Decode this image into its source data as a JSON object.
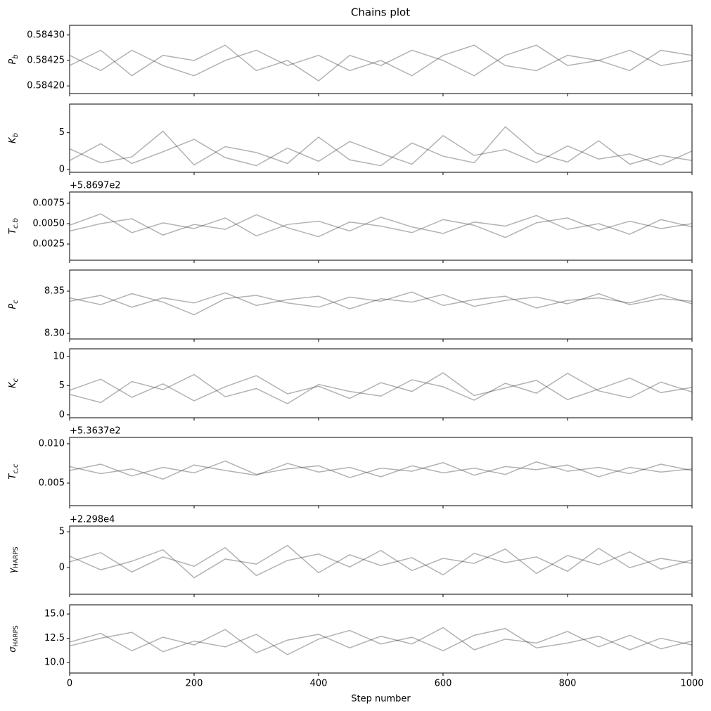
{
  "title": "Chains plot",
  "chart_data": [
    {
      "type": "line",
      "ylabel": {
        "text": "P",
        "sub": "b"
      },
      "color": "#000000",
      "alpha": 0.3,
      "x": [
        0,
        50,
        100,
        150,
        200,
        250,
        300,
        350,
        400,
        450,
        500,
        550,
        600,
        650,
        700,
        750,
        800,
        850,
        900,
        950,
        1000
      ],
      "xlim": [
        0,
        1000
      ],
      "ylim": [
        0.584185,
        0.584319
      ],
      "yticks": [
        {
          "value": 0.5842,
          "label": "0.58420"
        },
        0.58425,
        {
          "value": 0.5843,
          "label": "0.58430"
        }
      ],
      "series": [
        {
          "values": [
            0.58424,
            0.58427,
            0.58422,
            0.58426,
            0.58425,
            0.58428,
            0.58423,
            0.58425,
            0.58421,
            0.58426,
            0.58424,
            0.58427,
            0.58425,
            0.58422,
            0.58426,
            0.58428,
            0.58424,
            0.58425,
            0.58423,
            0.58427,
            0.58426
          ]
        },
        {
          "values": [
            0.58426,
            0.58423,
            0.58427,
            0.58424,
            0.58422,
            0.58425,
            0.58427,
            0.58424,
            0.58426,
            0.58423,
            0.58425,
            0.58422,
            0.58426,
            0.58428,
            0.58424,
            0.58423,
            0.58426,
            0.58425,
            0.58427,
            0.58424,
            0.58425
          ]
        }
      ]
    },
    {
      "type": "line",
      "ylabel": {
        "text": "K",
        "sub": "b"
      },
      "color": "#000000",
      "alpha": 0.3,
      "x": [
        0,
        50,
        100,
        150,
        200,
        250,
        300,
        350,
        400,
        450,
        500,
        550,
        600,
        650,
        700,
        750,
        800,
        850,
        900,
        950,
        1000
      ],
      "xlim": [
        0,
        1000
      ],
      "ylim": [
        -0.4,
        8.9
      ],
      "yticks": [
        0,
        5
      ],
      "series": [
        {
          "values": [
            1.2,
            3.5,
            0.8,
            2.4,
            4.1,
            1.6,
            0.5,
            2.9,
            1.1,
            3.8,
            2.2,
            0.7,
            4.6,
            1.9,
            2.7,
            0.9,
            3.2,
            1.4,
            2.1,
            0.6,
            2.5
          ]
        },
        {
          "values": [
            2.8,
            0.9,
            1.7,
            5.2,
            0.6,
            3.1,
            2.3,
            0.8,
            4.4,
            1.3,
            0.5,
            3.6,
            1.8,
            0.9,
            5.8,
            2.2,
            1.0,
            3.9,
            0.7,
            1.9,
            1.2
          ]
        }
      ]
    },
    {
      "type": "line",
      "ylabel": {
        "text": "T",
        "sub": "c,b"
      },
      "offset": "+5.8697e2",
      "color": "#000000",
      "alpha": 0.3,
      "x": [
        0,
        50,
        100,
        150,
        200,
        250,
        300,
        350,
        400,
        450,
        500,
        550,
        600,
        650,
        700,
        750,
        800,
        850,
        900,
        950,
        1000
      ],
      "xlim": [
        0,
        1000
      ],
      "ylim": [
        0.00052,
        0.00888
      ],
      "yticks": [
        0.0025,
        {
          "value": 0.005,
          "label": "0.0050"
        },
        0.0075
      ],
      "series": [
        {
          "values": [
            0.0048,
            0.0062,
            0.0039,
            0.0051,
            0.0044,
            0.0057,
            0.0035,
            0.0049,
            0.0053,
            0.0041,
            0.0058,
            0.0046,
            0.0038,
            0.0052,
            0.0047,
            0.006,
            0.0043,
            0.005,
            0.0037,
            0.0055,
            0.0046
          ]
        },
        {
          "values": [
            0.0041,
            0.005,
            0.0056,
            0.0036,
            0.0049,
            0.0043,
            0.0061,
            0.0045,
            0.0034,
            0.0052,
            0.0047,
            0.0039,
            0.0055,
            0.0048,
            0.0033,
            0.0051,
            0.0057,
            0.0042,
            0.0053,
            0.0044,
            0.005
          ]
        }
      ]
    },
    {
      "type": "line",
      "ylabel": {
        "text": "P",
        "sub": "c"
      },
      "color": "#000000",
      "alpha": 0.3,
      "x": [
        0,
        50,
        100,
        150,
        200,
        250,
        300,
        350,
        400,
        450,
        500,
        550,
        600,
        650,
        700,
        750,
        800,
        850,
        900,
        950,
        1000
      ],
      "xlim": [
        0,
        1000
      ],
      "ylim": [
        8.2933,
        8.375
      ],
      "yticks": [
        {
          "value": 8.3,
          "label": "8.30"
        },
        8.35
      ],
      "series": [
        {
          "values": [
            8.338,
            8.345,
            8.331,
            8.342,
            8.336,
            8.348,
            8.333,
            8.34,
            8.344,
            8.329,
            8.341,
            8.337,
            8.346,
            8.332,
            8.339,
            8.343,
            8.335,
            8.347,
            8.334,
            8.341,
            8.338
          ]
        },
        {
          "values": [
            8.342,
            8.334,
            8.347,
            8.337,
            8.322,
            8.341,
            8.345,
            8.336,
            8.331,
            8.343,
            8.338,
            8.349,
            8.333,
            8.34,
            8.344,
            8.33,
            8.339,
            8.342,
            8.336,
            8.346,
            8.335
          ]
        }
      ]
    },
    {
      "type": "line",
      "ylabel": {
        "text": "K",
        "sub": "c"
      },
      "color": "#000000",
      "alpha": 0.3,
      "x": [
        0,
        50,
        100,
        150,
        200,
        250,
        300,
        350,
        400,
        450,
        500,
        550,
        600,
        650,
        700,
        750,
        800,
        850,
        900,
        950,
        1000
      ],
      "xlim": [
        0,
        1000
      ],
      "ylim": [
        -0.5,
        11.3
      ],
      "yticks": [
        0,
        5,
        10
      ],
      "series": [
        {
          "values": [
            4.2,
            6.1,
            3.0,
            5.3,
            2.4,
            4.8,
            6.7,
            3.6,
            4.9,
            2.8,
            5.5,
            4.0,
            7.2,
            3.3,
            4.6,
            5.9,
            2.6,
            4.4,
            6.3,
            3.8,
            4.7
          ]
        },
        {
          "values": [
            3.5,
            2.1,
            5.7,
            4.3,
            6.9,
            3.1,
            4.5,
            1.9,
            5.2,
            4.0,
            3.2,
            6.0,
            4.8,
            2.5,
            5.4,
            3.7,
            7.1,
            4.1,
            2.9,
            5.6,
            3.9
          ]
        }
      ]
    },
    {
      "type": "line",
      "ylabel": {
        "text": "T",
        "sub": "c,c"
      },
      "offset": "+5.3637e2",
      "color": "#000000",
      "alpha": 0.3,
      "x": [
        0,
        50,
        100,
        150,
        200,
        250,
        300,
        350,
        400,
        450,
        500,
        550,
        600,
        650,
        700,
        750,
        800,
        850,
        900,
        950,
        1000
      ],
      "xlim": [
        0,
        1000
      ],
      "ylim": [
        0.00214,
        0.0108
      ],
      "yticks": [
        {
          "value": 0.005,
          "label": "0.005"
        },
        {
          "value": 0.01,
          "label": "0.010"
        }
      ],
      "series": [
        {
          "values": [
            0.0066,
            0.0074,
            0.0059,
            0.007,
            0.0063,
            0.0078,
            0.0061,
            0.0068,
            0.0072,
            0.0057,
            0.0069,
            0.0065,
            0.0076,
            0.006,
            0.0071,
            0.0067,
            0.0073,
            0.0058,
            0.007,
            0.0064,
            0.0068
          ]
        },
        {
          "values": [
            0.0071,
            0.0062,
            0.0068,
            0.0055,
            0.0073,
            0.0066,
            0.006,
            0.0075,
            0.0064,
            0.007,
            0.0058,
            0.0072,
            0.0063,
            0.0069,
            0.0061,
            0.0077,
            0.0065,
            0.007,
            0.0062,
            0.0074,
            0.0066
          ]
        }
      ]
    },
    {
      "type": "line",
      "ylabel": {
        "text": "γ",
        "sub": "HARPS"
      },
      "offset": "+2.298e4",
      "color": "#000000",
      "alpha": 0.3,
      "x": [
        0,
        50,
        100,
        150,
        200,
        250,
        300,
        350,
        400,
        450,
        500,
        550,
        600,
        650,
        700,
        750,
        800,
        850,
        900,
        950,
        1000
      ],
      "xlim": [
        0,
        1000
      ],
      "ylim": [
        -3.7,
        5.8
      ],
      "yticks": [
        0,
        5
      ],
      "series": [
        {
          "values": [
            0.8,
            2.1,
            -0.6,
            1.5,
            0.2,
            2.8,
            -1.1,
            1.0,
            1.9,
            0.1,
            2.4,
            -0.4,
            1.3,
            0.6,
            2.6,
            -0.8,
            1.7,
            0.4,
            2.2,
            -0.2,
            1.1
          ]
        },
        {
          "values": [
            1.6,
            -0.3,
            0.9,
            2.5,
            -1.4,
            1.2,
            0.5,
            3.1,
            -0.7,
            1.8,
            0.3,
            1.4,
            -1.0,
            2.0,
            0.7,
            1.5,
            -0.5,
            2.7,
            0.0,
            1.3,
            0.6
          ]
        }
      ]
    },
    {
      "type": "line",
      "ylabel": {
        "text": "σ",
        "sub": "HARPS"
      },
      "xlabel": "Step number",
      "color": "#000000",
      "alpha": 0.3,
      "x": [
        0,
        50,
        100,
        150,
        200,
        250,
        300,
        350,
        400,
        450,
        500,
        550,
        600,
        650,
        700,
        750,
        800,
        850,
        900,
        950,
        1000
      ],
      "xlim": [
        0,
        1000
      ],
      "xticks": [
        0,
        200,
        400,
        600,
        800,
        1000
      ],
      "ylim": [
        8.9,
        15.95
      ],
      "yticks": [
        {
          "value": 10,
          "label": "10.0"
        },
        12.5,
        {
          "value": 15,
          "label": "15.0"
        }
      ],
      "series": [
        {
          "values": [
            12.1,
            13.0,
            11.2,
            12.6,
            11.8,
            13.4,
            11.0,
            12.3,
            12.9,
            11.5,
            12.7,
            11.9,
            13.6,
            11.3,
            12.4,
            12.0,
            13.2,
            11.6,
            12.8,
            11.4,
            12.2
          ]
        },
        {
          "values": [
            11.7,
            12.5,
            13.1,
            11.1,
            12.2,
            11.6,
            12.9,
            10.8,
            12.4,
            13.3,
            11.9,
            12.6,
            11.2,
            12.8,
            13.5,
            11.5,
            12.0,
            12.7,
            11.3,
            12.5,
            11.8
          ]
        }
      ]
    }
  ]
}
